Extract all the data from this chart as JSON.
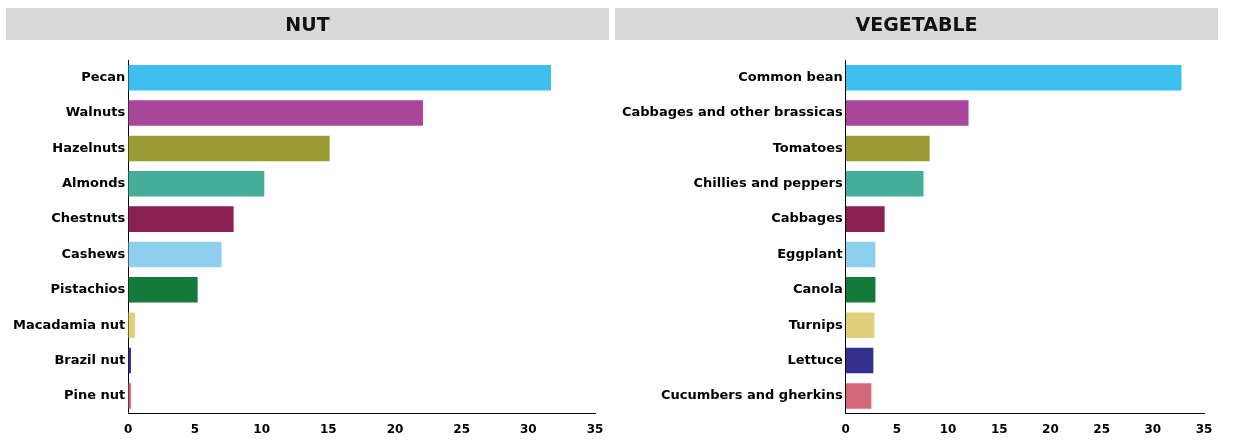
{
  "chart_data": [
    {
      "type": "bar",
      "orientation": "horizontal",
      "title": "NUT",
      "categories": [
        "Pecan",
        "Walnuts",
        "Hazelnuts",
        "Almonds",
        "Chestnuts",
        "Cashews",
        "Pistachios",
        "Macadamia nut",
        "Brazil nut",
        "Pine nut"
      ],
      "values": [
        31.7,
        22.1,
        15.1,
        10.2,
        7.9,
        7.0,
        5.2,
        0.5,
        0.2,
        0.2
      ],
      "colors": [
        "#3dbfef",
        "#a8479a",
        "#9b9b36",
        "#46ad9a",
        "#8a2051",
        "#8ecfef",
        "#137a3c",
        "#e1d07a",
        "#35308d",
        "#d36677"
      ],
      "xlim": [
        0,
        35
      ],
      "xticks": [
        0,
        5,
        10,
        15,
        20,
        25,
        30,
        35
      ],
      "grid": false,
      "legend": false
    },
    {
      "type": "bar",
      "orientation": "horizontal",
      "title": "VEGETABLE",
      "categories": [
        "Common bean",
        "Cabbages and other brassicas",
        "Tomatoes",
        "Chillies and peppers",
        "Cabbages",
        "Eggplant",
        "Canola",
        "Turnips",
        "Lettuce",
        "Cucumbers and gherkins"
      ],
      "values": [
        32.8,
        12.0,
        8.2,
        7.6,
        3.8,
        2.9,
        2.9,
        2.8,
        2.7,
        2.5
      ],
      "colors": [
        "#3dbfef",
        "#a8479a",
        "#9b9b36",
        "#46ad9a",
        "#8a2051",
        "#8ecfef",
        "#137a3c",
        "#e1d07a",
        "#35308d",
        "#d36677"
      ],
      "xlim": [
        0,
        35
      ],
      "xticks": [
        0,
        5,
        10,
        15,
        20,
        25,
        30,
        35
      ],
      "grid": false,
      "legend": false
    }
  ]
}
